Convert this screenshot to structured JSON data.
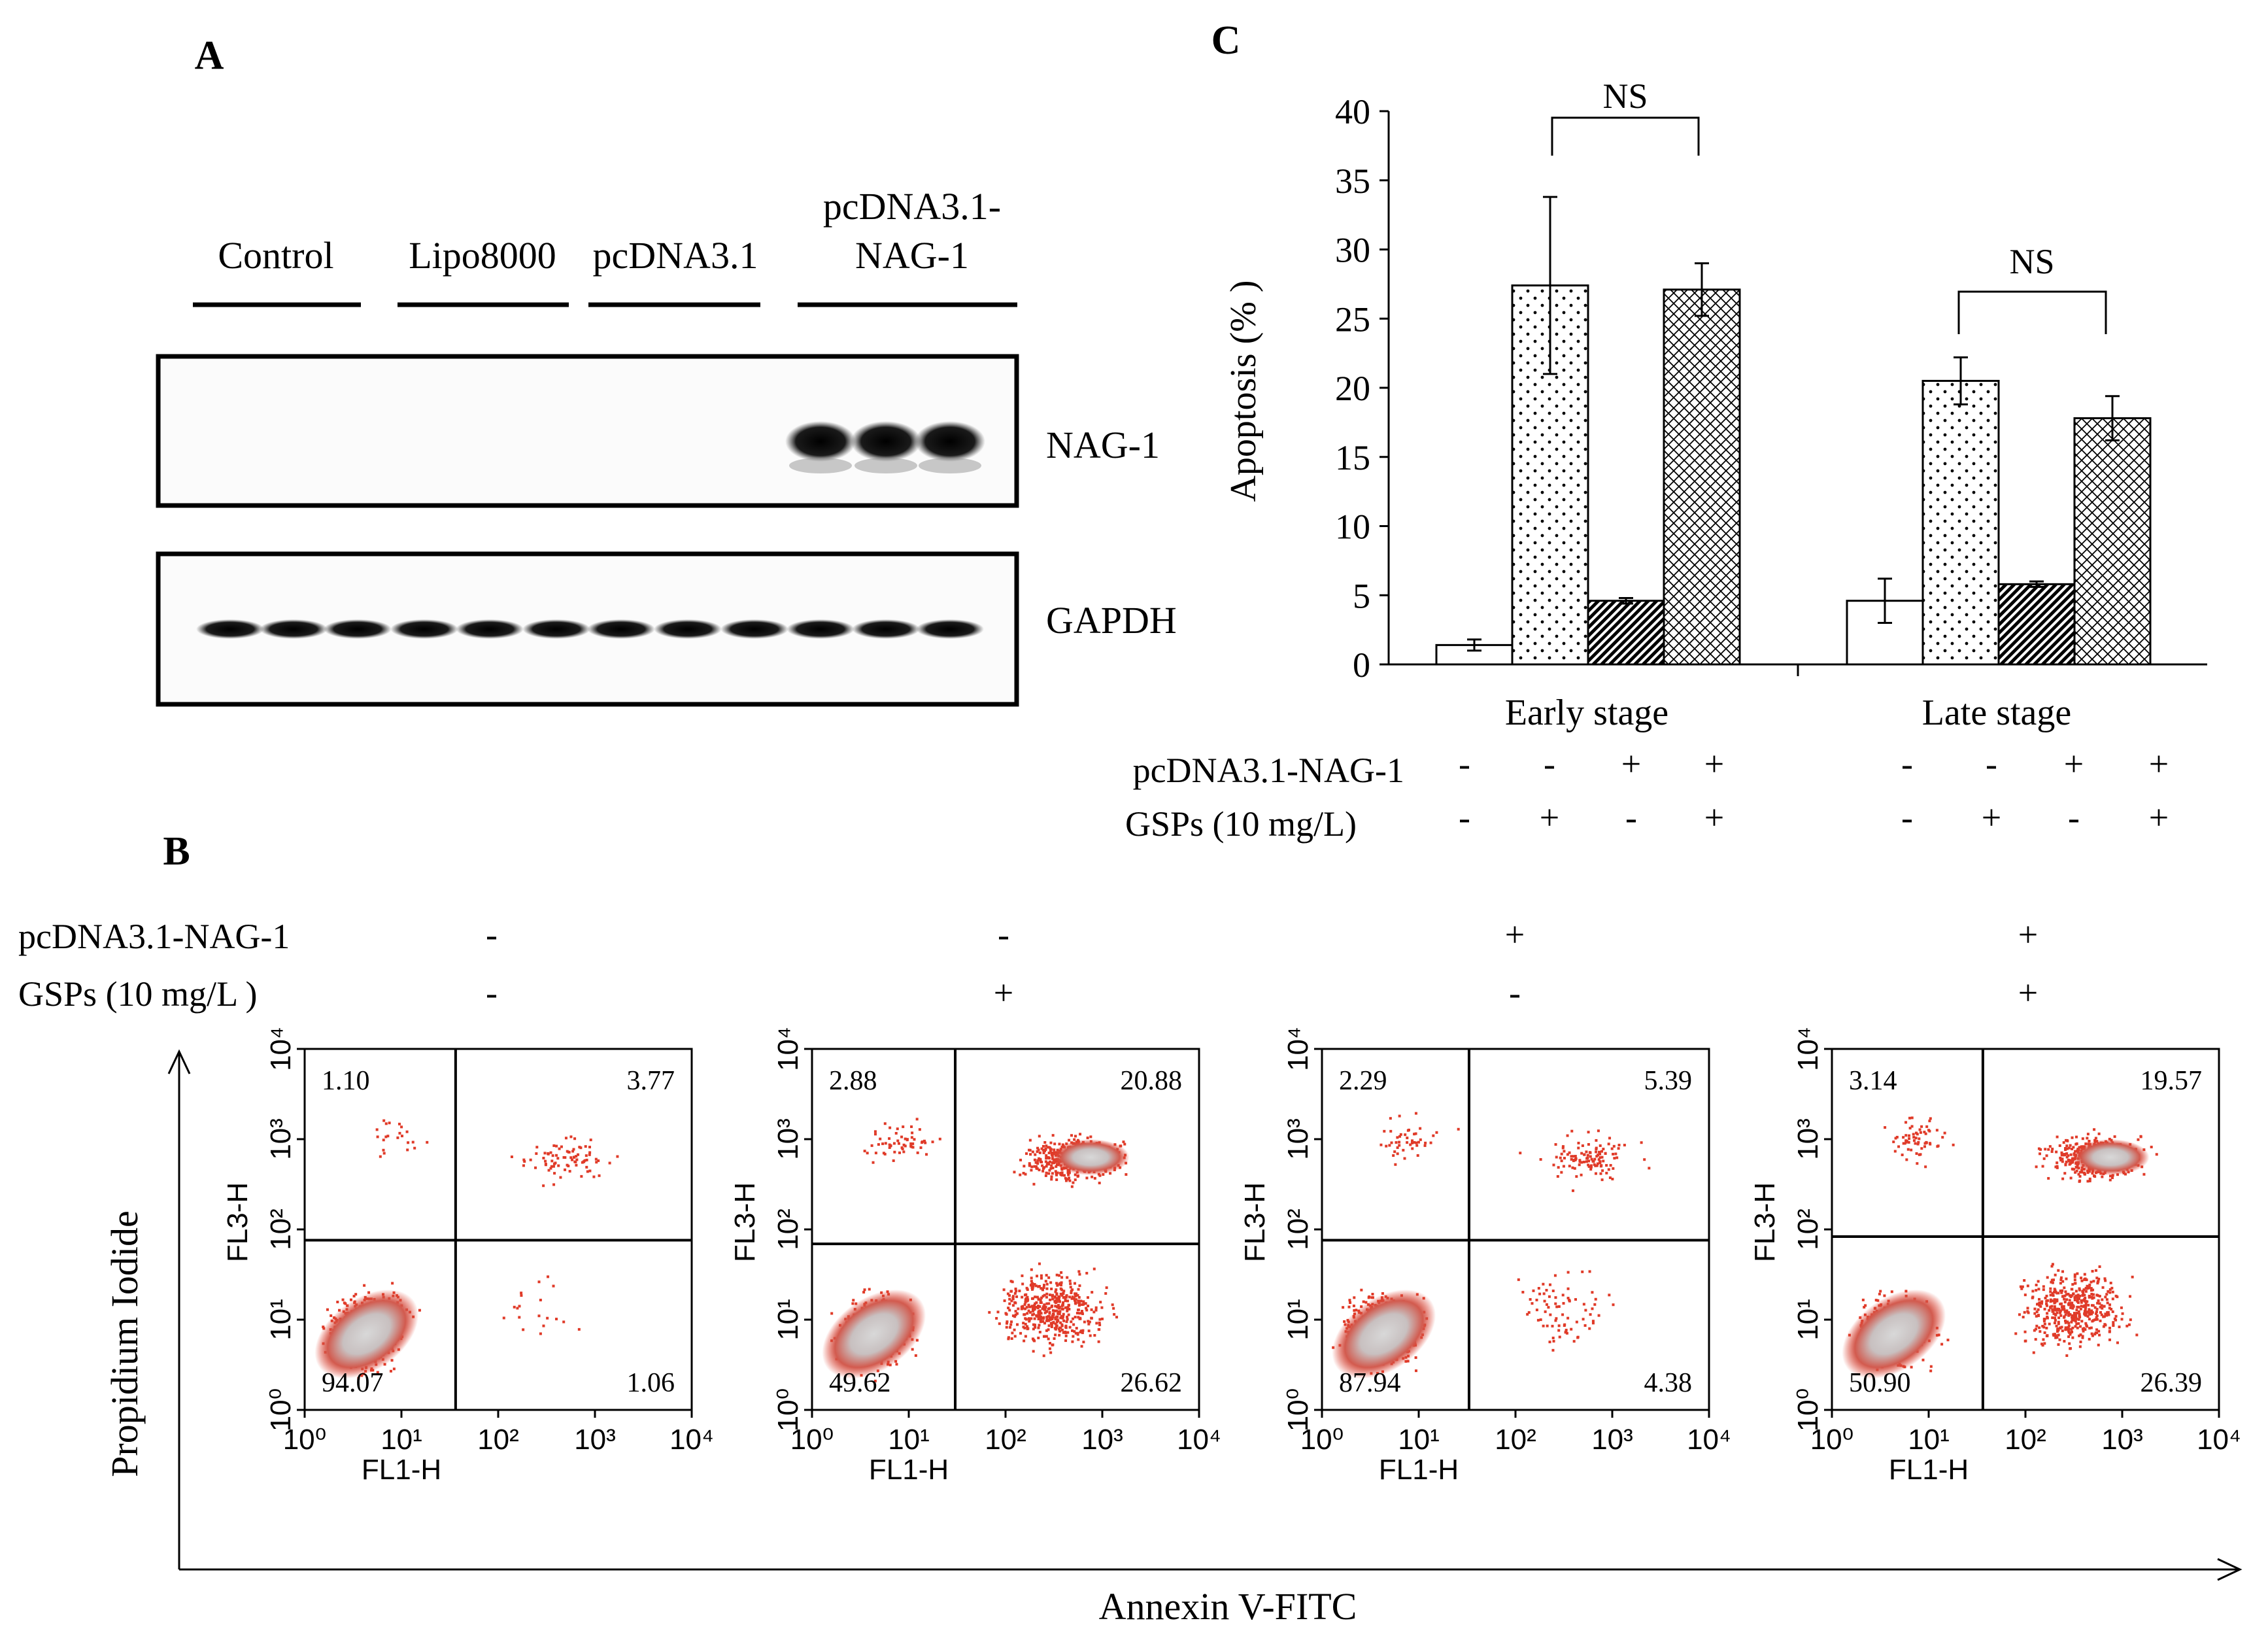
{
  "panels": {
    "A": {
      "label": "A",
      "groups": [
        "Control",
        "Lipo8000",
        "pcDNA3.1",
        "pcDNA3.1-\nNAG-1"
      ],
      "blots": [
        {
          "label": "NAG-1",
          "intensity": [
            0,
            0,
            0,
            0,
            0,
            0,
            0,
            0,
            0,
            1,
            1,
            1
          ]
        },
        {
          "label": "GAPDH",
          "intensity": [
            1,
            1,
            1,
            1,
            1,
            1,
            1,
            1,
            1,
            1,
            1,
            1
          ]
        }
      ]
    },
    "B": {
      "label": "B",
      "row_labels": [
        "pcDNA3.1-NAG-1",
        "GSPs (10 mg/L )"
      ],
      "signs": [
        [
          "-",
          "-"
        ],
        [
          "-",
          "+"
        ],
        [
          "+",
          "-"
        ],
        [
          "+",
          "+"
        ]
      ],
      "x_axis_title": "Annexin V-FITC",
      "y_axis_title": "Propidium Iodide",
      "plot_xlabel": "FL1-H",
      "plot_ylabel": "FL3-H",
      "ticks": [
        "10⁰",
        "10¹",
        "10²",
        "10³",
        "10⁴"
      ],
      "plots": [
        {
          "ul": "1.10",
          "ur": "3.77",
          "ll": "94.07",
          "lr": "1.06"
        },
        {
          "ul": "2.88",
          "ur": "20.88",
          "ll": "49.62",
          "lr": "26.62"
        },
        {
          "ul": "2.29",
          "ur": "5.39",
          "ll": "87.94",
          "lr": "4.38"
        },
        {
          "ul": "3.14",
          "ur": "19.57",
          "ll": "50.90",
          "lr": "26.39"
        }
      ]
    },
    "C": {
      "label": "C",
      "ns_label": "NS",
      "row_labels": [
        "pcDNA3.1-NAG-1",
        "GSPs (10 mg/L)"
      ],
      "signs": [
        [
          "-",
          "-"
        ],
        [
          "-",
          "+"
        ],
        [
          "+",
          "-"
        ],
        [
          "+",
          "+"
        ],
        [
          "-",
          "-"
        ],
        [
          "-",
          "+"
        ],
        [
          "+",
          "-"
        ],
        [
          "+",
          "+"
        ]
      ]
    }
  },
  "chart_data": {
    "type": "bar",
    "categories": [
      "Early stage",
      "Late stage"
    ],
    "ylabel": "Apoptosis (% )",
    "ylim": [
      0,
      40
    ],
    "yticks": [
      0,
      5,
      10,
      15,
      20,
      25,
      30,
      35,
      40
    ],
    "series": [
      {
        "pattern": "blank",
        "values": [
          1.4,
          4.6
        ],
        "errors": [
          0.4,
          1.6
        ]
      },
      {
        "pattern": "dots",
        "values": [
          27.4,
          20.5
        ],
        "errors": [
          6.4,
          1.7
        ]
      },
      {
        "pattern": "diag-dense",
        "values": [
          4.6,
          5.8
        ],
        "errors": [
          0.2,
          0.2
        ]
      },
      {
        "pattern": "crosshatch",
        "values": [
          27.1,
          17.8
        ],
        "errors": [
          1.9,
          1.6
        ]
      }
    ]
  }
}
